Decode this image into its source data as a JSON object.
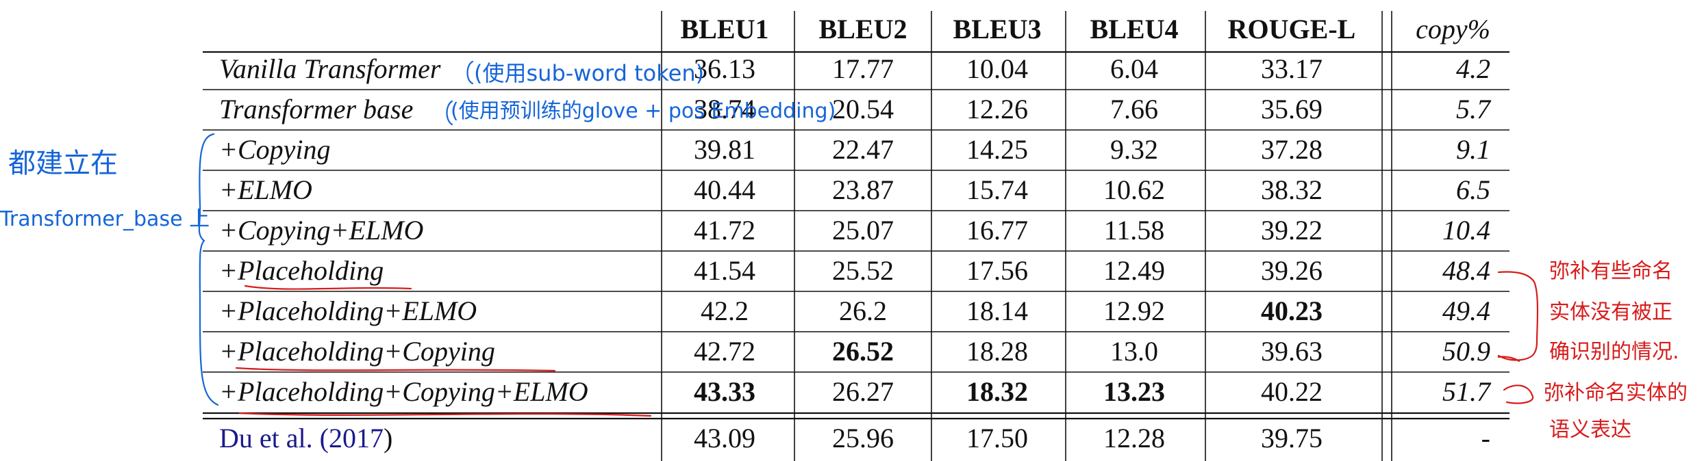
{
  "table": {
    "headers": [
      "BLEU1",
      "BLEU2",
      "BLEU3",
      "BLEU4",
      "ROUGE-L",
      "copy%"
    ],
    "rows": [
      {
        "model": "Vanilla Transformer",
        "values": [
          "36.13",
          "17.77",
          "10.04",
          "6.04",
          "33.17",
          "4.2"
        ],
        "bold": [
          false,
          false,
          false,
          false,
          false,
          false
        ]
      },
      {
        "model": "Transformer base",
        "values": [
          "38.74",
          "20.54",
          "12.26",
          "7.66",
          "35.69",
          "5.7"
        ],
        "bold": [
          false,
          false,
          false,
          false,
          false,
          false
        ]
      },
      {
        "model": "+Copying",
        "values": [
          "39.81",
          "22.47",
          "14.25",
          "9.32",
          "37.28",
          "9.1"
        ],
        "bold": [
          false,
          false,
          false,
          false,
          false,
          false
        ]
      },
      {
        "model": "+ELMO",
        "values": [
          "40.44",
          "23.87",
          "15.74",
          "10.62",
          "38.32",
          "6.5"
        ],
        "bold": [
          false,
          false,
          false,
          false,
          false,
          false
        ]
      },
      {
        "model": "+Copying+ELMO",
        "values": [
          "41.72",
          "25.07",
          "16.77",
          "11.58",
          "39.22",
          "10.4"
        ],
        "bold": [
          false,
          false,
          false,
          false,
          false,
          false
        ]
      },
      {
        "model": "+Placeholding",
        "values": [
          "41.54",
          "25.52",
          "17.56",
          "12.49",
          "39.26",
          "48.4"
        ],
        "bold": [
          false,
          false,
          false,
          false,
          false,
          false
        ]
      },
      {
        "model": "+Placeholding+ELMO",
        "values": [
          "42.2",
          "26.2",
          "18.14",
          "12.92",
          "40.23",
          "49.4"
        ],
        "bold": [
          false,
          false,
          false,
          false,
          true,
          false
        ]
      },
      {
        "model": "+Placeholding+Copying",
        "values": [
          "42.72",
          "26.52",
          "18.28",
          "13.0",
          "39.63",
          "50.9"
        ],
        "bold": [
          false,
          true,
          false,
          false,
          false,
          false
        ]
      },
      {
        "model": "+Placeholding+Copying+ELMO",
        "values": [
          "43.33",
          "26.27",
          "18.32",
          "13.23",
          "40.22",
          "51.7"
        ],
        "bold": [
          true,
          false,
          true,
          true,
          false,
          false
        ]
      }
    ],
    "baseline": {
      "model_prefix": "Du et al. (",
      "model_year": "2017",
      "model_suffix": ")",
      "values": [
        "43.09",
        "25.96",
        "17.50",
        "12.28",
        "39.75",
        "-"
      ]
    }
  },
  "annotations": {
    "blue_left_line1": "都建立在",
    "blue_left_line2": "Transformer_base 上",
    "blue_row1": "(使用sub-word token)",
    "blue_row2": "(使用预训练的glove + pos Embedding)",
    "red_note1_line1": "弥补有些命名",
    "red_note1_line2": "实体没有被正",
    "red_note1_line3": "确识别的情况.",
    "red_note2_line1": "弥补命名实体的",
    "red_note2_line2": "语义表达"
  }
}
